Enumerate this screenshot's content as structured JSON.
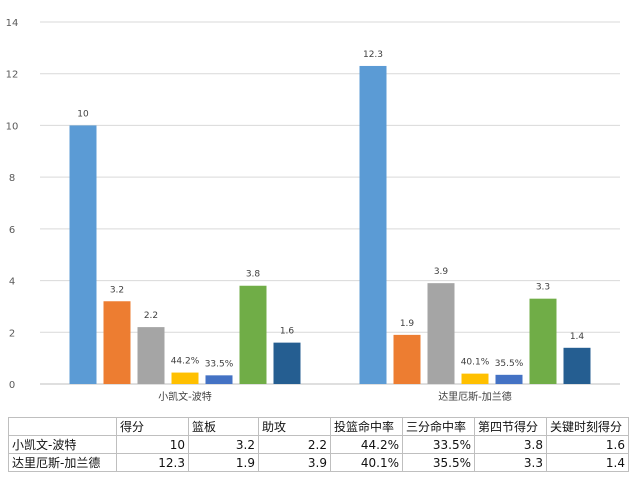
{
  "chart_data": {
    "type": "bar",
    "categories": [
      "小凯文-波特",
      "达里厄斯-加兰德"
    ],
    "series": [
      {
        "name": "得分",
        "values": [
          10,
          12.3
        ],
        "labels": [
          "10",
          "12.3"
        ],
        "color": "#5b9bd5"
      },
      {
        "name": "篮板",
        "values": [
          3.2,
          1.9
        ],
        "labels": [
          "3.2",
          "1.9"
        ],
        "color": "#ed7d31"
      },
      {
        "name": "助攻",
        "values": [
          2.2,
          3.9
        ],
        "labels": [
          "2.2",
          "3.9"
        ],
        "color": "#a5a5a5"
      },
      {
        "name": "投篮命中率",
        "values": [
          0.442,
          0.401
        ],
        "labels": [
          "44.2%",
          "40.1%"
        ],
        "color": "#ffc000"
      },
      {
        "name": "三分命中率",
        "values": [
          0.335,
          0.355
        ],
        "labels": [
          "33.5%",
          "35.5%"
        ],
        "color": "#4472c4"
      },
      {
        "name": "第四节得分",
        "values": [
          3.8,
          3.3
        ],
        "labels": [
          "3.8",
          "3.3"
        ],
        "color": "#70ad47"
      },
      {
        "name": "关键时刻得分",
        "values": [
          1.6,
          1.4
        ],
        "labels": [
          "1.6",
          "1.4"
        ],
        "color": "#255e91"
      }
    ],
    "yticks": [
      "0",
      "2",
      "4",
      "6",
      "8",
      "10",
      "12",
      "14"
    ],
    "ylim": [
      0,
      14
    ],
    "grid": true,
    "legend": "data-table-below"
  },
  "table": {
    "rows": [
      {
        "name": "小凯文-波特",
        "cells": [
          "10",
          "3.2",
          "2.2",
          "44.2%",
          "33.5%",
          "3.8",
          "1.6"
        ]
      },
      {
        "name": "达里厄斯-加兰德",
        "cells": [
          "12.3",
          "1.9",
          "3.9",
          "40.1%",
          "35.5%",
          "3.3",
          "1.4"
        ]
      }
    ]
  }
}
